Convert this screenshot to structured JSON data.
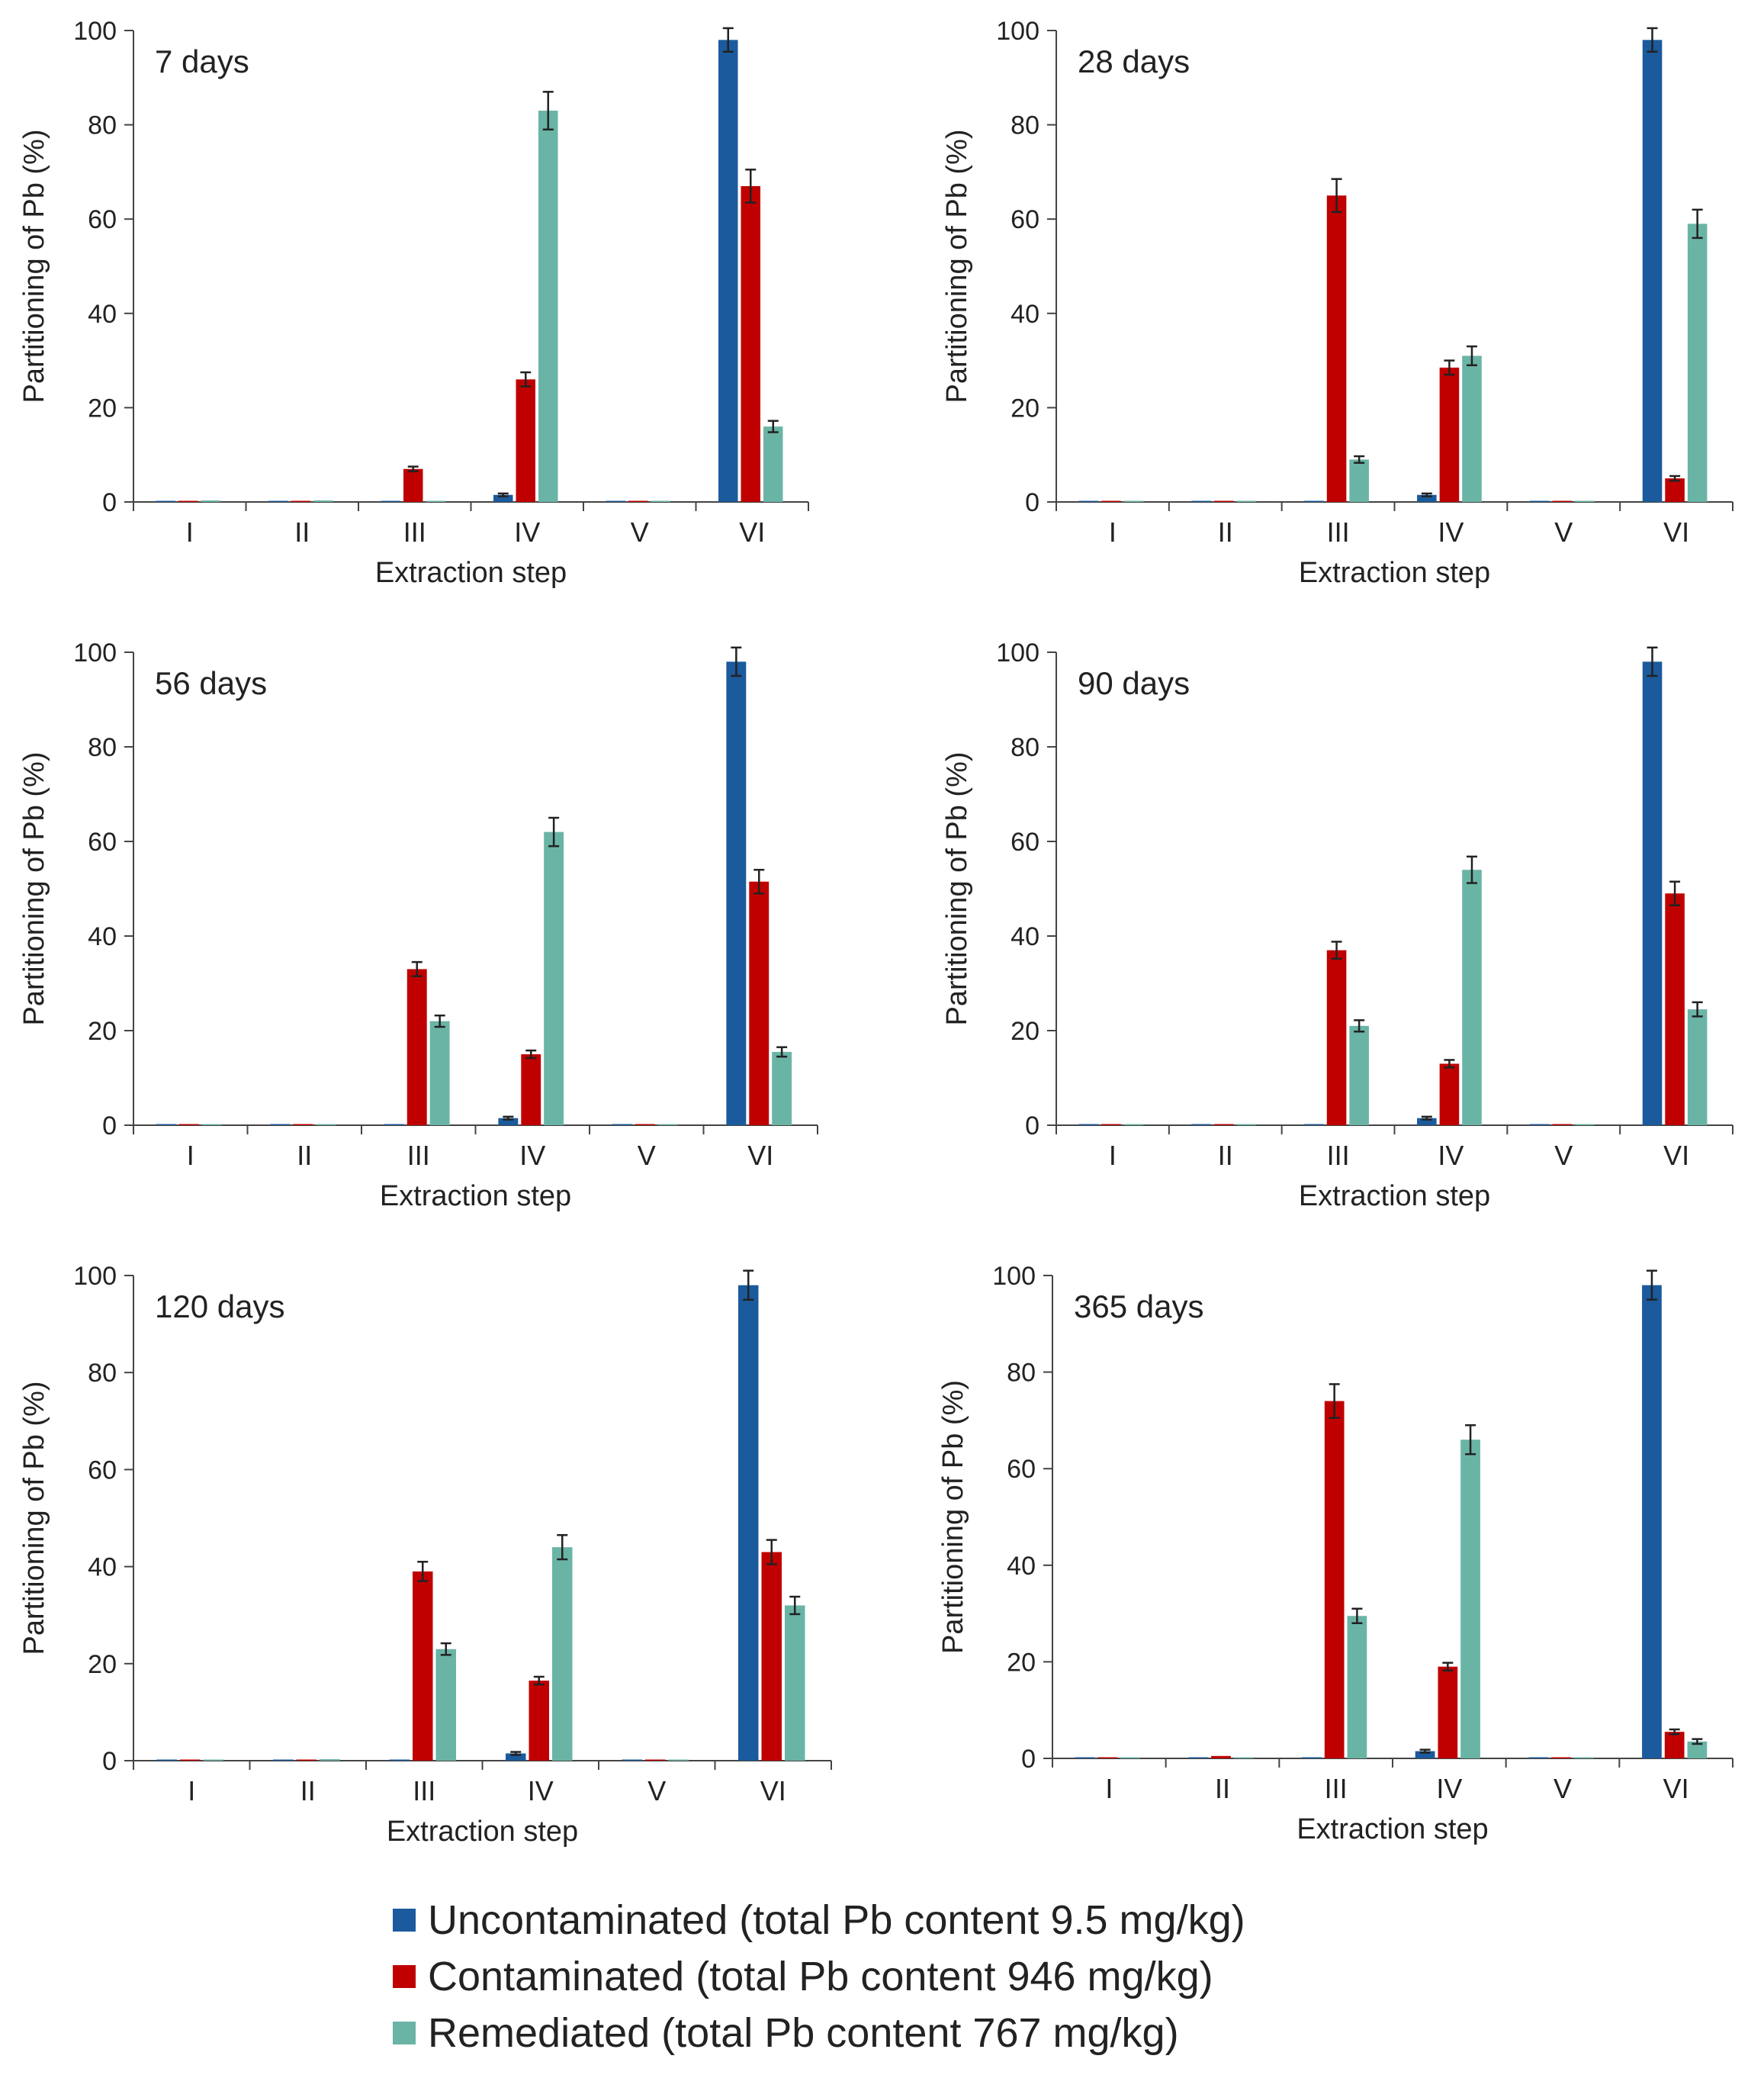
{
  "series_colors": {
    "uncontaminated": "#1b5a9c",
    "contaminated": "#c00000",
    "remediated": "#6ab4a6"
  },
  "legend": [
    {
      "key": "uncontaminated",
      "label": "Uncontaminated (total Pb content 9.5 mg/kg)"
    },
    {
      "key": "contaminated",
      "label": "Contaminated (total Pb content 946 mg/kg)"
    },
    {
      "key": "remediated",
      "label": "Remediated (total Pb content 767 mg/kg)"
    }
  ],
  "chart_data": [
    {
      "type": "bar",
      "title": "7 days",
      "xlabel": "Extraction step",
      "ylabel": "Partitioning of Pb (%)",
      "ylim": [
        0,
        100
      ],
      "yticks": [
        "0",
        "20",
        "40",
        "60",
        "80",
        "100"
      ],
      "categories": [
        "I",
        "II",
        "III",
        "IV",
        "V",
        "VI"
      ],
      "series": [
        {
          "name": "Uncontaminated (total Pb content 9.5 mg/kg)",
          "key": "uncontaminated",
          "values": [
            0,
            0,
            0,
            1.5,
            0,
            98
          ],
          "errors": [
            0,
            0,
            0,
            0.3,
            0,
            2.5
          ]
        },
        {
          "name": "Contaminated (total Pb content 946 mg/kg)",
          "key": "contaminated",
          "values": [
            0,
            0,
            7,
            26,
            0,
            67
          ],
          "errors": [
            0,
            0,
            0.5,
            1.5,
            0,
            3.5
          ]
        },
        {
          "name": "Remediated (total Pb content 767 mg/kg)",
          "key": "remediated",
          "values": [
            0.2,
            0.2,
            0,
            83,
            0,
            16
          ],
          "errors": [
            0,
            0,
            0,
            4,
            0,
            1.2
          ]
        }
      ]
    },
    {
      "type": "bar",
      "title": "28 days",
      "xlabel": "Extraction step",
      "ylabel": "Partitioning of Pb (%)",
      "ylim": [
        0,
        100
      ],
      "yticks": [
        "0",
        "20",
        "40",
        "60",
        "80",
        "100"
      ],
      "categories": [
        "I",
        "II",
        "III",
        "IV",
        "V",
        "VI"
      ],
      "series": [
        {
          "name": "Uncontaminated (total Pb content 9.5 mg/kg)",
          "key": "uncontaminated",
          "values": [
            0,
            0,
            0,
            1.5,
            0,
            98
          ],
          "errors": [
            0,
            0,
            0,
            0.3,
            0,
            2.5
          ]
        },
        {
          "name": "Contaminated (total Pb content 946 mg/kg)",
          "key": "contaminated",
          "values": [
            0,
            0,
            65,
            28.5,
            0,
            5
          ],
          "errors": [
            0,
            0,
            3.5,
            1.5,
            0,
            0.5
          ]
        },
        {
          "name": "Remediated (total Pb content 767 mg/kg)",
          "key": "remediated",
          "values": [
            0,
            0,
            9,
            31,
            0,
            59
          ],
          "errors": [
            0,
            0,
            0.7,
            2,
            0,
            3
          ]
        }
      ]
    },
    {
      "type": "bar",
      "title": "56 days",
      "xlabel": "Extraction step",
      "ylabel": "Partitioning of Pb (%)",
      "ylim": [
        0,
        100
      ],
      "yticks": [
        "0",
        "20",
        "40",
        "60",
        "80",
        "100"
      ],
      "categories": [
        "I",
        "II",
        "III",
        "IV",
        "V",
        "VI"
      ],
      "series": [
        {
          "name": "Uncontaminated (total Pb content 9.5 mg/kg)",
          "key": "uncontaminated",
          "values": [
            0,
            0,
            0,
            1.5,
            0,
            98
          ],
          "errors": [
            0,
            0,
            0,
            0.3,
            0,
            3
          ]
        },
        {
          "name": "Contaminated (total Pb content 946 mg/kg)",
          "key": "contaminated",
          "values": [
            0,
            0,
            33,
            15,
            0,
            51.5
          ],
          "errors": [
            0,
            0,
            1.5,
            0.8,
            0,
            2.5
          ]
        },
        {
          "name": "Remediated (total Pb content 767 mg/kg)",
          "key": "remediated",
          "values": [
            0,
            0,
            22,
            62,
            0,
            15.5
          ],
          "errors": [
            0,
            0,
            1.2,
            3,
            0,
            1
          ]
        }
      ]
    },
    {
      "type": "bar",
      "title": "90 days",
      "xlabel": "Extraction step",
      "ylabel": "Partitioning of Pb (%)",
      "ylim": [
        0,
        100
      ],
      "yticks": [
        "0",
        "20",
        "40",
        "60",
        "80",
        "100"
      ],
      "categories": [
        "I",
        "II",
        "III",
        "IV",
        "V",
        "VI"
      ],
      "series": [
        {
          "name": "Uncontaminated (total Pb content 9.5 mg/kg)",
          "key": "uncontaminated",
          "values": [
            0,
            0,
            0,
            1.5,
            0,
            98
          ],
          "errors": [
            0,
            0,
            0,
            0.3,
            0,
            3
          ]
        },
        {
          "name": "Contaminated (total Pb content 946 mg/kg)",
          "key": "contaminated",
          "values": [
            0,
            0,
            37,
            13,
            0,
            49
          ],
          "errors": [
            0,
            0,
            1.8,
            0.8,
            0,
            2.5
          ]
        },
        {
          "name": "Remediated (total Pb content 767 mg/kg)",
          "key": "remediated",
          "values": [
            0,
            0,
            21,
            54,
            0,
            24.5
          ],
          "errors": [
            0,
            0,
            1.2,
            2.8,
            0,
            1.5
          ]
        }
      ]
    },
    {
      "type": "bar",
      "title": "120 days",
      "xlabel": "Extraction step",
      "ylabel": "Partitioning of Pb (%)",
      "ylim": [
        0,
        100
      ],
      "yticks": [
        "0",
        "20",
        "40",
        "60",
        "80",
        "100"
      ],
      "categories": [
        "I",
        "II",
        "III",
        "IV",
        "V",
        "VI"
      ],
      "series": [
        {
          "name": "Uncontaminated (total Pb content 9.5 mg/kg)",
          "key": "uncontaminated",
          "values": [
            0,
            0,
            0,
            1.5,
            0,
            98
          ],
          "errors": [
            0,
            0,
            0,
            0.3,
            0,
            3
          ]
        },
        {
          "name": "Contaminated (total Pb content 946 mg/kg)",
          "key": "contaminated",
          "values": [
            0,
            0,
            39,
            16.5,
            0,
            43
          ],
          "errors": [
            0,
            0,
            2,
            0.8,
            0,
            2.5
          ]
        },
        {
          "name": "Remediated (total Pb content 767 mg/kg)",
          "key": "remediated",
          "values": [
            0,
            0.3,
            23,
            44,
            0,
            32
          ],
          "errors": [
            0,
            0,
            1.2,
            2.5,
            0,
            1.8
          ]
        }
      ]
    },
    {
      "type": "bar",
      "title": "365 days",
      "xlabel": "Extraction step",
      "ylabel": "Partitioning of Pb (%)",
      "ylim": [
        0,
        100
      ],
      "yticks": [
        "0",
        "20",
        "40",
        "60",
        "80",
        "100"
      ],
      "categories": [
        "I",
        "II",
        "III",
        "IV",
        "V",
        "VI"
      ],
      "series": [
        {
          "name": "Uncontaminated (total Pb content 9.5 mg/kg)",
          "key": "uncontaminated",
          "values": [
            0,
            0,
            0,
            1.5,
            0,
            98
          ],
          "errors": [
            0,
            0,
            0,
            0.3,
            0,
            3
          ]
        },
        {
          "name": "Contaminated (total Pb content 946 mg/kg)",
          "key": "contaminated",
          "values": [
            0,
            0.5,
            74,
            19,
            0,
            5.5
          ],
          "errors": [
            0,
            0,
            3.5,
            0.8,
            0,
            0.5
          ]
        },
        {
          "name": "Remediated (total Pb content 767 mg/kg)",
          "key": "remediated",
          "values": [
            0,
            0,
            29.5,
            66,
            0,
            3.5
          ],
          "errors": [
            0,
            0,
            1.5,
            3,
            0,
            0.5
          ]
        }
      ]
    }
  ]
}
